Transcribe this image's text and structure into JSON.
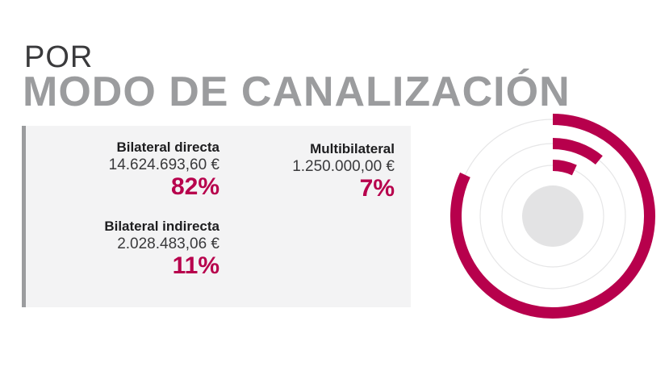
{
  "header": {
    "title_small": "POR",
    "title_big": "MODO DE CANALIZACIÓN"
  },
  "items": [
    {
      "name": "Bilateral directa",
      "amount": "14.624.693,60 €",
      "percent_label": "82%"
    },
    {
      "name": "Multibilateral",
      "amount": "1.250.000,00 €",
      "percent_label": "7%"
    },
    {
      "name": "Bilateral indirecta",
      "amount": "2.028.483,06 €",
      "percent_label": "11%"
    }
  ],
  "colors": {
    "accent": "#b7004c",
    "title_gray": "#9b9c9e",
    "panel_bg": "#f3f3f4",
    "track": "#e6e6e7",
    "center": "#e3e3e4"
  },
  "chart_data": {
    "type": "radial-bar",
    "categories": [
      "Bilateral directa",
      "Bilateral indirecta",
      "Multibilateral"
    ],
    "values": [
      82,
      11,
      7
    ],
    "unit": "%",
    "max": 100
  }
}
